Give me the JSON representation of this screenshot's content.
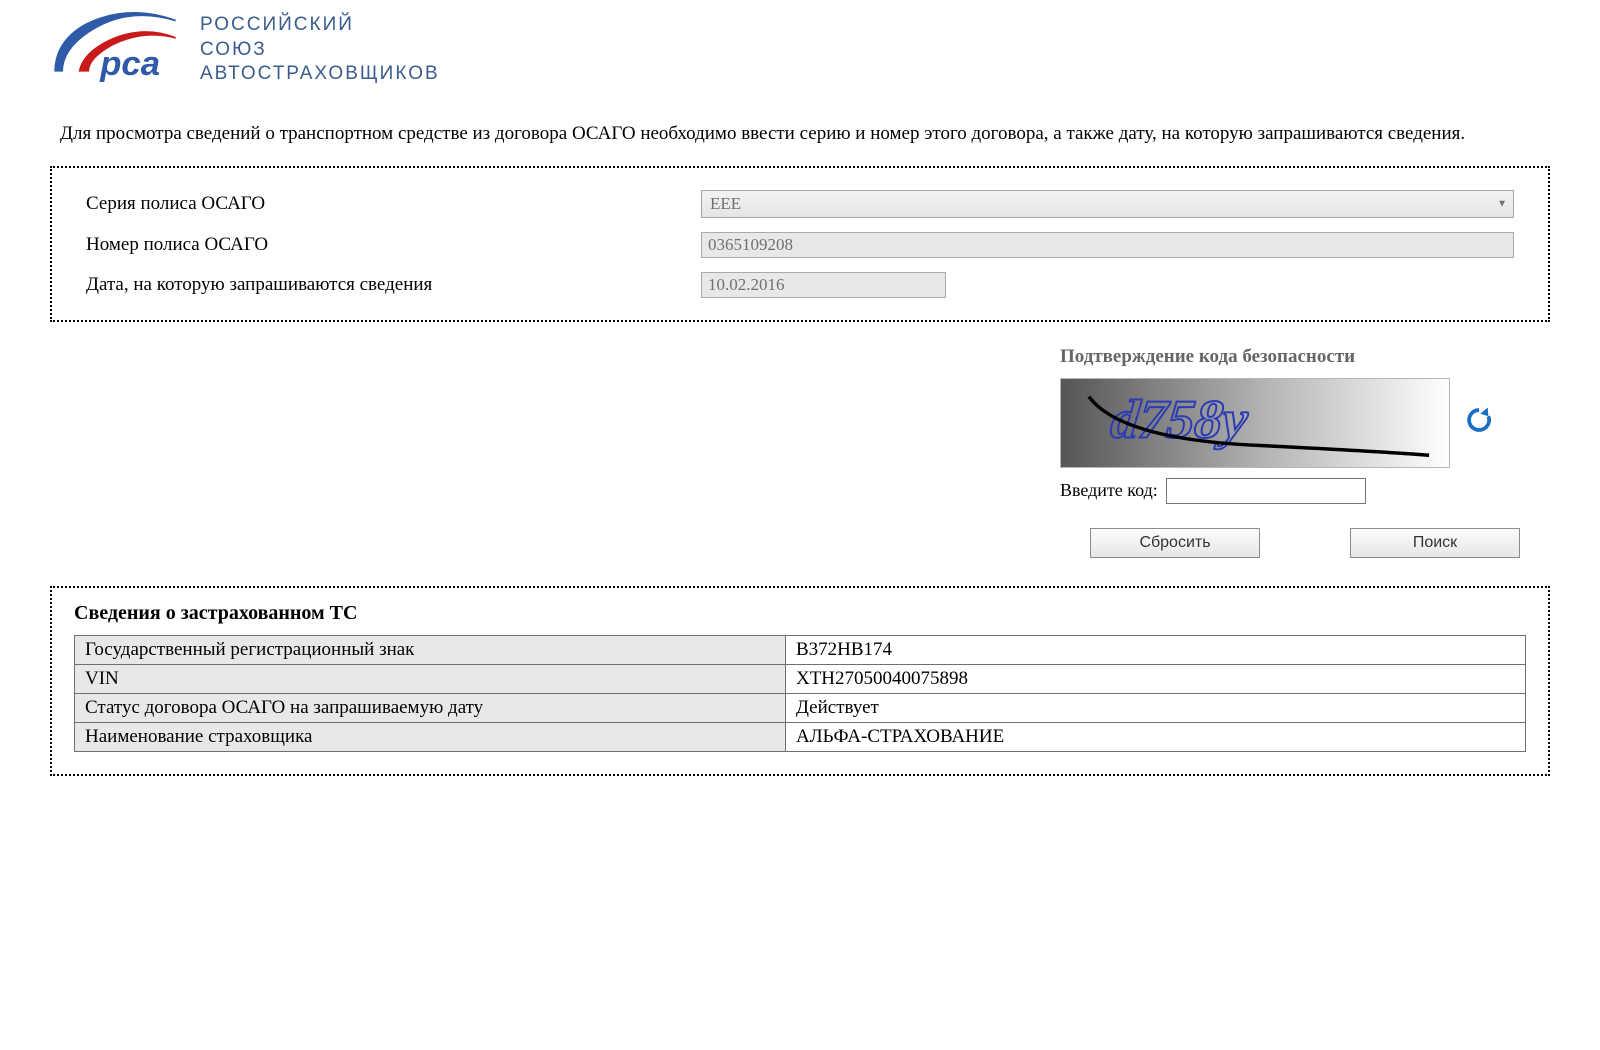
{
  "org": {
    "line1": "РОССИЙСКИЙ",
    "line2": "СОЮЗ",
    "line3": "АВТОСТРАХОВЩИКОВ",
    "logo_text": "рса",
    "swoosh_colors": [
      "#2f5aa8",
      "#c91a1a",
      "#ffffff"
    ],
    "text_color": "#3b5c8f",
    "logo_text_color": "#2f5aa8"
  },
  "intro": "Для просмотра сведений о транспортном средстве из договора ОСАГО необходимо ввести серию и номер этого договора, а также дату, на которую запрашиваются сведения.",
  "form": {
    "series_label": "Серия полиса ОСАГО",
    "series_value": "ЕЕЕ",
    "number_label": "Номер полиса ОСАГО",
    "number_value": "0365109208",
    "date_label": "Дата, на которую запрашиваются сведения",
    "date_value": "10.02.2016"
  },
  "captcha": {
    "title": "Подтверждение кода безопасности",
    "text": "d758y",
    "text_color": "#2b3ab5",
    "enter_label": "Введите код:",
    "value": ""
  },
  "buttons": {
    "reset": "Сбросить",
    "search": "Поиск"
  },
  "results": {
    "title": "Сведения о застрахованном ТС",
    "rows": [
      {
        "label": "Государственный регистрационный знак",
        "value": "В372НВ174"
      },
      {
        "label": "VIN",
        "value": "XTH27050040075898"
      },
      {
        "label": "Статус договора ОСАГО на запрашиваемую дату",
        "value": "Действует"
      },
      {
        "label": "Наименование страховщика",
        "value": "АЛЬФА-СТРАХОВАНИЕ"
      }
    ]
  },
  "colors": {
    "field_bg": "#e8e8e8",
    "border": "#a7a7a7",
    "dotted_border": "#000000",
    "button_gradient_top": "#fcfcfc",
    "button_gradient_bottom": "#e6e6e6"
  }
}
